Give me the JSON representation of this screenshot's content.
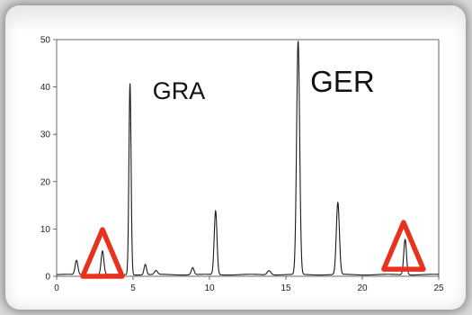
{
  "chart_data": {
    "type": "line",
    "title": "",
    "xlabel": "",
    "ylabel": "",
    "xlim": [
      0,
      25
    ],
    "ylim": [
      0,
      50
    ],
    "x_ticks": [
      "0",
      "5",
      "10",
      "15",
      "20",
      "25"
    ],
    "y_ticks": [
      "0",
      "10",
      "20",
      "30",
      "40",
      "50"
    ],
    "grid": false,
    "legend": "none",
    "series": [
      {
        "color": "#1a1a1a",
        "peaks": [
          {
            "x": 1.3,
            "height": 3.0,
            "width": 0.09
          },
          {
            "x": 3.0,
            "height": 5.0,
            "width": 0.09
          },
          {
            "x": 4.8,
            "height": 40.5,
            "width": 0.07
          },
          {
            "x": 5.8,
            "height": 2.2,
            "width": 0.08
          },
          {
            "x": 6.5,
            "height": 0.8,
            "width": 0.1
          },
          {
            "x": 8.9,
            "height": 1.5,
            "width": 0.09
          },
          {
            "x": 10.4,
            "height": 13.5,
            "width": 0.09
          },
          {
            "x": 13.9,
            "height": 0.9,
            "width": 0.12
          },
          {
            "x": 15.8,
            "height": 49.3,
            "width": 0.1
          },
          {
            "x": 18.4,
            "height": 15.2,
            "width": 0.1
          },
          {
            "x": 22.8,
            "height": 7.5,
            "width": 0.09
          }
        ]
      }
    ],
    "annotations": [
      {
        "text": "GRA",
        "x": 8.0,
        "y": 37.5,
        "size": 27
      },
      {
        "text": "GER",
        "x": 18.7,
        "y": 39.0,
        "size": 33
      }
    ],
    "markers": [
      {
        "shape": "triangle",
        "x": 3.0,
        "base_y": 0,
        "color": "#e8321f"
      },
      {
        "shape": "triangle",
        "x": 22.7,
        "base_y": 1.5,
        "color": "#e8321f"
      }
    ]
  }
}
